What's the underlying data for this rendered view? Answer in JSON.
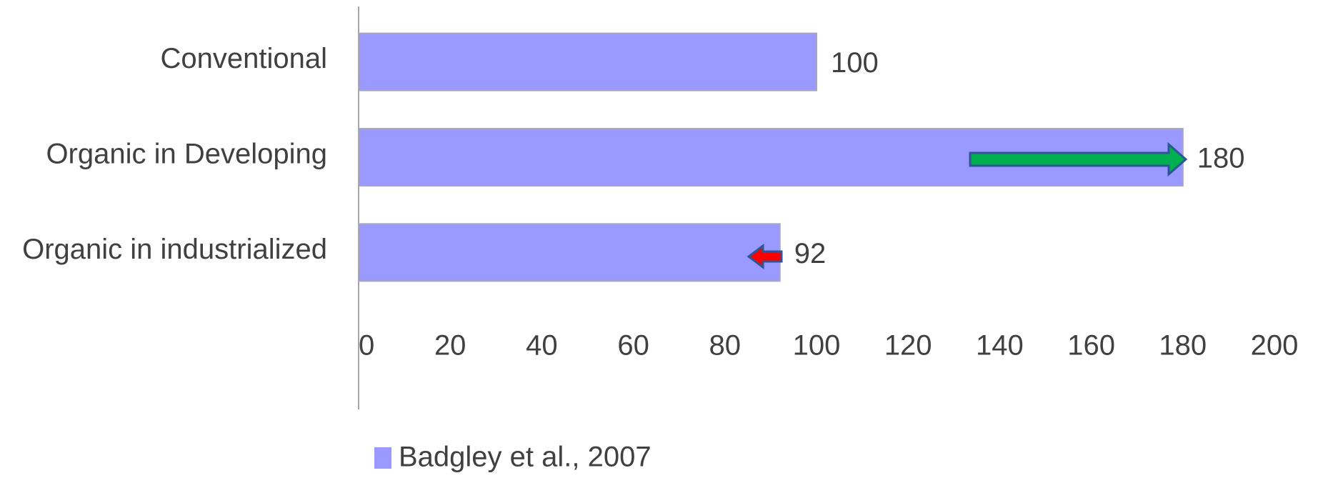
{
  "chart_data": {
    "type": "barh",
    "categories": [
      "Conventional",
      "Organic in Developing",
      "Organic in industrialized"
    ],
    "series": [
      {
        "name": "Badgley et al., 2007",
        "color": "#9999ff",
        "values": [
          100,
          180,
          92
        ]
      }
    ],
    "xlim": [
      0,
      200
    ],
    "xticks": [
      0,
      20,
      40,
      60,
      80,
      100,
      120,
      140,
      160,
      180,
      200
    ],
    "grid": false,
    "legend": "bottom"
  }
}
